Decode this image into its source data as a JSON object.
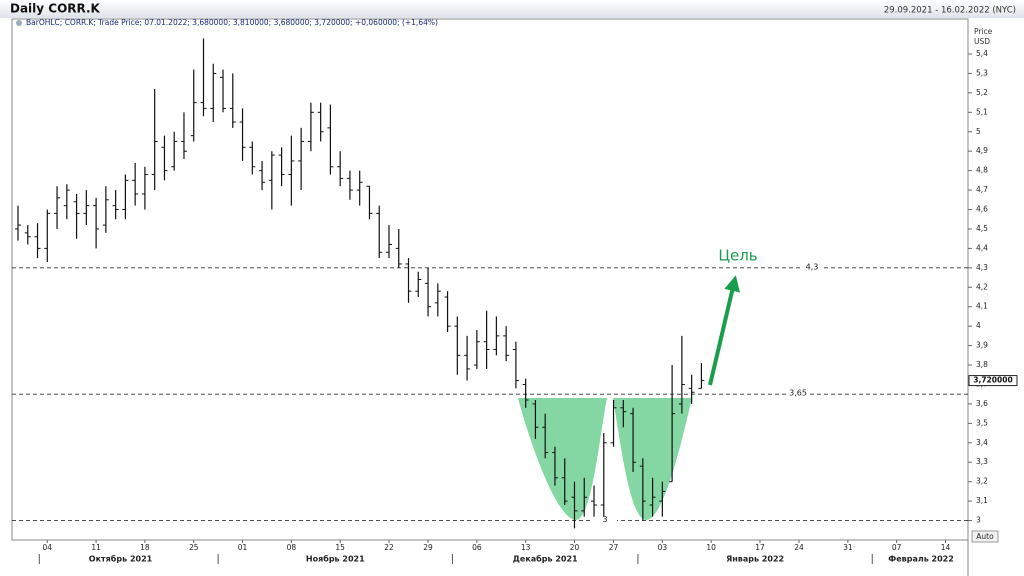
{
  "chart_data": {
    "type": "ohlc",
    "title": "Daily CORR.K",
    "date_range": "29.09.2021 - 16.02.2022 (NYC)",
    "subtitle": "BarOHLC; CORR.K; Trade Price; 07.01.2022; 3,680000; 3,810000; 3,680000; 3,720000; +0,060000; (+1,64%)",
    "y_axis_label": [
      "Price",
      "USD"
    ],
    "auto_button": "Auto",
    "annotation": "Цель",
    "color": "#111111",
    "categories": [
      null,
      null,
      null,
      "04",
      null,
      null,
      null,
      null,
      "11",
      null,
      null,
      null,
      null,
      "18",
      null,
      null,
      null,
      null,
      "25",
      null,
      null,
      null,
      null,
      "01",
      null,
      null,
      null,
      null,
      "08",
      null,
      null,
      null,
      null,
      "15",
      null,
      null,
      null,
      null,
      "22",
      null,
      null,
      null,
      "29",
      null,
      null,
      null,
      null,
      "06",
      null,
      null,
      null,
      null,
      "13",
      null,
      null,
      null,
      null,
      "20",
      null,
      null,
      null,
      "27",
      null,
      null,
      null,
      null,
      "03",
      null,
      null,
      null,
      null,
      "10",
      null,
      null,
      null,
      null,
      "17",
      null,
      null,
      null,
      "24",
      null,
      null,
      null,
      null,
      "31",
      null,
      null,
      null,
      null,
      "07",
      null,
      null,
      null,
      null,
      "14",
      null,
      null
    ],
    "months": [
      "Октябрь 2021",
      "Ноябрь 2021",
      "Декабрь 2021",
      "Январь 2022",
      "Февраль 2022"
    ],
    "open": [
      4.5,
      4.48,
      4.46,
      4.4,
      4.58,
      4.62,
      4.64,
      4.58,
      4.62,
      4.52,
      4.62,
      4.6,
      4.75,
      4.68,
      4.78,
      4.92,
      4.82,
      4.95,
      4.98,
      5.15,
      5.12,
      5.28,
      5.12,
      5.05,
      4.92,
      4.8,
      4.75,
      4.88,
      4.78,
      4.85,
      4.95,
      5.1,
      5.02,
      4.82,
      4.76,
      4.7,
      4.72,
      4.58,
      4.38,
      4.4,
      4.32,
      4.18,
      4.22,
      4.12,
      4.15,
      4.0,
      3.85,
      3.8,
      3.92,
      3.88,
      3.95,
      3.88,
      3.7,
      3.6,
      3.48,
      3.35,
      3.22,
      3.12,
      3.05,
      3.1,
      3.08,
      3.4,
      3.58,
      3.55,
      3.28,
      3.08,
      3.1,
      3.2,
      3.6,
      3.68,
      3.68,
      null,
      null,
      null,
      null,
      null,
      null,
      null,
      null,
      null,
      null,
      null,
      null,
      null,
      null,
      null,
      null,
      null,
      null,
      null,
      null,
      null,
      null,
      null,
      null,
      null,
      null,
      null
    ],
    "high": [
      4.62,
      4.52,
      4.53,
      4.6,
      4.72,
      4.73,
      4.68,
      4.7,
      4.66,
      4.72,
      4.7,
      4.78,
      4.84,
      4.82,
      5.22,
      4.98,
      5.0,
      5.1,
      5.32,
      5.48,
      5.35,
      5.32,
      5.3,
      5.12,
      4.95,
      4.85,
      4.9,
      4.92,
      4.98,
      5.02,
      5.15,
      5.15,
      5.14,
      4.9,
      4.8,
      4.8,
      4.72,
      4.62,
      4.52,
      4.5,
      4.35,
      4.28,
      4.3,
      4.22,
      4.18,
      4.05,
      3.95,
      3.98,
      4.08,
      4.05,
      4.0,
      3.92,
      3.73,
      3.62,
      3.55,
      3.38,
      3.32,
      3.2,
      3.22,
      3.18,
      3.45,
      3.62,
      3.62,
      3.58,
      3.32,
      3.22,
      3.2,
      3.8,
      3.95,
      3.75,
      3.81,
      null,
      null,
      null,
      null,
      null,
      null,
      null,
      null,
      null,
      null,
      null,
      null,
      null,
      null,
      null,
      null,
      null,
      null,
      null,
      null,
      null,
      null,
      null,
      null,
      null,
      null,
      null
    ],
    "low": [
      4.44,
      4.42,
      4.35,
      4.33,
      4.5,
      4.55,
      4.45,
      4.52,
      4.4,
      4.48,
      4.55,
      4.55,
      4.62,
      4.6,
      4.7,
      4.75,
      4.8,
      4.86,
      4.95,
      5.08,
      5.05,
      5.1,
      5.02,
      4.85,
      4.78,
      4.7,
      4.6,
      4.72,
      4.62,
      4.7,
      4.9,
      4.95,
      4.78,
      4.72,
      4.65,
      4.62,
      4.55,
      4.35,
      4.35,
      4.3,
      4.12,
      4.15,
      4.05,
      4.05,
      3.97,
      3.75,
      3.72,
      3.78,
      3.78,
      3.85,
      3.82,
      3.68,
      3.58,
      3.42,
      3.32,
      3.18,
      3.08,
      2.96,
      3.02,
      3.02,
      3.02,
      3.38,
      3.48,
      3.25,
      3.0,
      3.02,
      3.02,
      3.2,
      3.55,
      3.6,
      3.68,
      null,
      null,
      null,
      null,
      null,
      null,
      null,
      null,
      null,
      null,
      null,
      null,
      null,
      null,
      null,
      null,
      null,
      null,
      null,
      null,
      null,
      null,
      null,
      null,
      null,
      null,
      null
    ],
    "close": [
      4.52,
      4.46,
      4.4,
      4.58,
      4.66,
      4.7,
      4.58,
      4.62,
      4.5,
      4.65,
      4.6,
      4.75,
      4.68,
      4.78,
      4.95,
      4.8,
      4.95,
      4.9,
      5.15,
      5.12,
      5.3,
      5.12,
      5.05,
      4.92,
      4.82,
      4.74,
      4.88,
      4.78,
      4.85,
      4.95,
      5.1,
      5.0,
      4.82,
      4.76,
      4.7,
      4.74,
      4.58,
      4.38,
      4.42,
      4.32,
      4.18,
      4.24,
      4.1,
      4.18,
      4.0,
      3.85,
      3.78,
      3.92,
      3.88,
      3.95,
      3.85,
      3.72,
      3.62,
      3.48,
      3.35,
      3.22,
      3.1,
      3.05,
      3.12,
      3.08,
      3.4,
      3.58,
      3.56,
      3.3,
      3.1,
      3.12,
      3.15,
      3.55,
      3.7,
      3.66,
      3.72,
      null,
      null,
      null,
      null,
      null,
      null,
      null,
      null,
      null,
      null,
      null,
      null,
      null,
      null,
      null,
      null,
      null,
      null,
      null,
      null,
      null,
      null,
      null,
      null,
      null,
      null,
      null
    ],
    "ylim": [
      2.9,
      5.58
    ],
    "yticks": [
      3,
      {
        "value": 3.1,
        "label": "3,1"
      },
      {
        "value": 3.2,
        "label": "3,2"
      },
      {
        "value": 3.3,
        "label": "3,3"
      },
      {
        "value": 3.4,
        "label": "3,4"
      },
      {
        "value": 3.5,
        "label": "3,5"
      },
      {
        "value": 3.6,
        "label": "3,6"
      },
      {
        "value": 3.7,
        "label": "3,7"
      },
      {
        "value": 3.8,
        "label": "3,8"
      },
      {
        "value": 3.9,
        "label": "3,9"
      },
      4,
      {
        "value": 4.1,
        "label": "4,1"
      },
      {
        "value": 4.2,
        "label": "4,2"
      },
      {
        "value": 4.3,
        "label": "4,3"
      },
      {
        "value": 4.4,
        "label": "4,4"
      },
      {
        "value": 4.5,
        "label": "4,5"
      },
      {
        "value": 4.6,
        "label": "4,6"
      },
      {
        "value": 4.7,
        "label": "4,7"
      },
      {
        "value": 4.8,
        "label": "4,8"
      },
      {
        "value": 4.9,
        "label": "4,9"
      },
      5,
      {
        "value": 5.1,
        "label": "5,1"
      },
      {
        "value": 5.2,
        "label": "5,2"
      },
      {
        "value": 5.3,
        "label": "5,3"
      },
      {
        "value": 5.4,
        "label": "5,4"
      }
    ],
    "hlines": [
      {
        "value": 4.3,
        "label": "4,3"
      },
      {
        "value": 3.65,
        "label": "3,65"
      },
      {
        "value": 3,
        "label": "3"
      }
    ],
    "last_price": {
      "value": 3.72,
      "label": "3,720000"
    }
  }
}
